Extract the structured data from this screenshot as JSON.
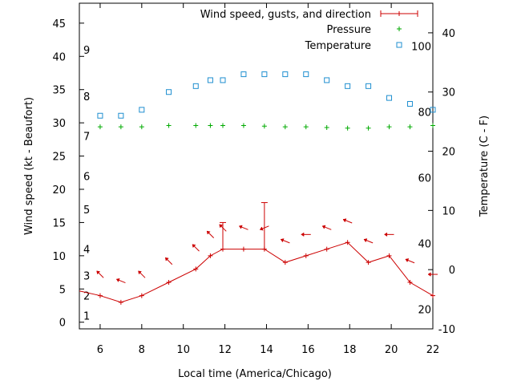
{
  "chart_data": {
    "type": "line",
    "xlabel": "Local time (America/Chicago)",
    "ylabel_left": "Wind speed (kt - Beaufort)",
    "ylabel_right": "Temperature (C - F)",
    "x_range": [
      5,
      22
    ],
    "y_left_range": [
      -1,
      48
    ],
    "y_right_range": [
      -10,
      45
    ],
    "x_ticks": [
      6,
      8,
      10,
      12,
      14,
      16,
      18,
      20,
      22
    ],
    "y_left_ticks": [
      0,
      5,
      10,
      15,
      20,
      25,
      30,
      35,
      40,
      45
    ],
    "y_right_ticks": [
      -10,
      0,
      10,
      20,
      30,
      40
    ],
    "beaufort_labels": [
      {
        "label": "1",
        "value": 1
      },
      {
        "label": "2",
        "value": 4
      },
      {
        "label": "3",
        "value": 7
      },
      {
        "label": "4",
        "value": 11
      },
      {
        "label": "5",
        "value": 17
      },
      {
        "label": "6",
        "value": 22
      },
      {
        "label": "7",
        "value": 28
      },
      {
        "label": "8",
        "value": 34
      },
      {
        "label": "9",
        "value": 41
      }
    ],
    "fahrenheit_labels": [
      {
        "label": "20",
        "celsius": -6.67
      },
      {
        "label": "40",
        "celsius": 4.44
      },
      {
        "label": "60",
        "celsius": 15.56
      },
      {
        "label": "80",
        "celsius": 26.67
      },
      {
        "label": "100",
        "celsius": 37.78
      }
    ],
    "legend": {
      "position": "top-right",
      "entries": [
        {
          "name": "Wind speed, gusts, and direction",
          "color": "#cc0000",
          "marker": "plus-line"
        },
        {
          "name": "Pressure",
          "color": "#00aa00",
          "marker": "plus"
        },
        {
          "name": "Temperature",
          "color": "#1f8fd0",
          "marker": "square"
        }
      ]
    },
    "series": [
      {
        "name": "Wind speed, gusts, and direction",
        "color": "#cc0000",
        "x": [
          5,
          6,
          7,
          8,
          9.3,
          10.6,
          11.3,
          11.9,
          12.9,
          13.9,
          14.9,
          15.9,
          16.9,
          17.9,
          18.9,
          19.9,
          20.9,
          22
        ],
        "speed": [
          4.7,
          4,
          3,
          4,
          6,
          8,
          10,
          11,
          11,
          11,
          9,
          10,
          11,
          12,
          9,
          10,
          6,
          4
        ],
        "gusts": [
          null,
          null,
          null,
          null,
          null,
          null,
          null,
          15,
          null,
          18,
          null,
          null,
          null,
          null,
          null,
          null,
          null,
          null
        ],
        "direction_deg": [
          null,
          135,
          112,
          135,
          135,
          135,
          135,
          135,
          112,
          68,
          112,
          90,
          112,
          112,
          112,
          90,
          112,
          90
        ]
      },
      {
        "name": "Pressure",
        "color": "#00aa00",
        "x": [
          6,
          7,
          8,
          9.3,
          10.6,
          11.3,
          11.9,
          12.9,
          13.9,
          14.9,
          15.9,
          16.9,
          17.9,
          18.9,
          19.9,
          20.9,
          22
        ],
        "y": [
          29.4,
          29.4,
          29.4,
          29.6,
          29.6,
          29.6,
          29.6,
          29.6,
          29.5,
          29.4,
          29.4,
          29.3,
          29.2,
          29.2,
          29.4,
          29.4,
          29.6
        ]
      },
      {
        "name": "Temperature",
        "color": "#1f8fd0",
        "x": [
          6,
          7,
          8,
          9.3,
          10.6,
          11.3,
          11.9,
          12.9,
          13.9,
          14.9,
          15.9,
          16.9,
          17.9,
          18.9,
          19.9,
          20.9,
          22
        ],
        "y": [
          26,
          26,
          27,
          30,
          31,
          32,
          32,
          33,
          33,
          33,
          33,
          32,
          31,
          31,
          29,
          28,
          27
        ]
      }
    ]
  }
}
